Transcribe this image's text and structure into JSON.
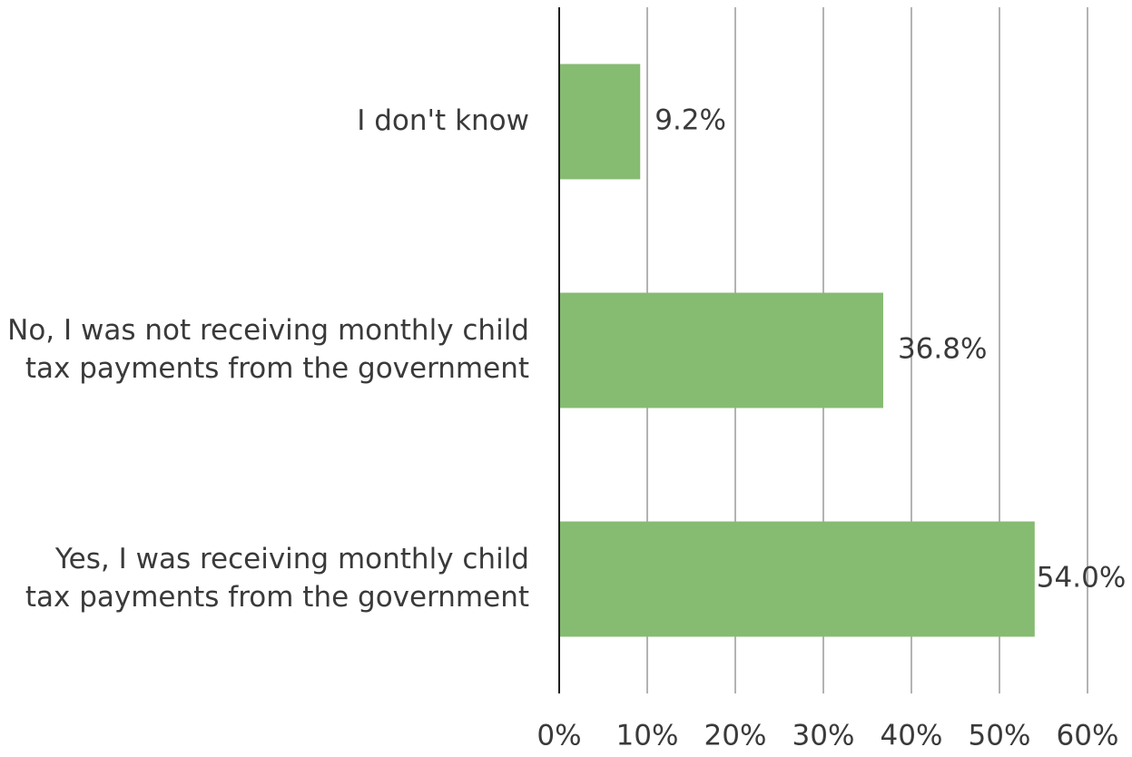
{
  "chart_data": {
    "type": "bar",
    "orientation": "horizontal",
    "categories": [
      [
        "Yes, I was receiving monthly child",
        "tax payments from the government"
      ],
      [
        "No, I was not receiving monthly child",
        "tax payments from the government"
      ],
      [
        "I don't know"
      ]
    ],
    "values": [
      54.0,
      36.8,
      9.2
    ],
    "data_labels": [
      "54.0%",
      "36.8%",
      "9.2%"
    ],
    "xlim": [
      0,
      60
    ],
    "x_ticks": [
      0,
      10,
      20,
      30,
      40,
      50,
      60
    ],
    "x_tick_labels": [
      "0%",
      "10%",
      "20%",
      "30%",
      "40%",
      "50%",
      "60%"
    ],
    "grid": "vertical",
    "bar_color": "#86bb72",
    "title": "",
    "xlabel": "",
    "ylabel": ""
  }
}
